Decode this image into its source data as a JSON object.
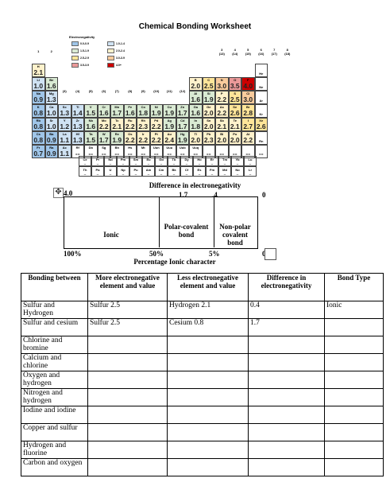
{
  "title": "Chemical Bonding Worksheet",
  "periodic_table": {
    "label": "Electronegativity",
    "legend": [
      {
        "range": "0.0-0.9",
        "color": "#9fc5e8"
      },
      {
        "range": "1.0-1.4",
        "color": "#cfe2f3"
      },
      {
        "range": "1.5-1.9",
        "color": "#d9ead3"
      },
      {
        "range": "2.0-2.4",
        "color": "#fff2cc"
      },
      {
        "range": "2.5-2.9",
        "color": "#ffe599"
      },
      {
        "range": "3.0-3.9",
        "color": "#f9cb9c"
      },
      {
        "range": "3.5-3.9",
        "color": "#ea9999"
      },
      {
        "range": "4.0+",
        "color": "#cc0000"
      }
    ],
    "group_numbers_left": [
      "1",
      "2"
    ],
    "group_numbers_right": [
      "3",
      "4",
      "5",
      "6",
      "7",
      "8"
    ],
    "group_numbers_right_sub": [
      "(13)",
      "(14)",
      "(15)",
      "(16)",
      "(17)",
      "(18)"
    ],
    "group_numbers_mid": [
      "(3)",
      "(4)",
      "(5)",
      "(6)",
      "(7)",
      "(8)",
      "(9)",
      "(10)",
      "(11)",
      "(12)"
    ],
    "rows": [
      {
        "left": [
          {
            "s": "H",
            "e": "2.1",
            "c": "#fff2cc"
          }
        ],
        "right": [
          {
            "s": "He",
            "e": "",
            "c": "#fff"
          }
        ]
      },
      {
        "left": [
          {
            "s": "Li",
            "e": "1.0",
            "c": "#cfe2f3"
          },
          {
            "s": "Be",
            "e": "1.6",
            "c": "#d9ead3"
          }
        ],
        "right": [
          {
            "s": "B",
            "e": "2.0",
            "c": "#fff2cc"
          },
          {
            "s": "C",
            "e": "2.5",
            "c": "#ffe599"
          },
          {
            "s": "N",
            "e": "3.0",
            "c": "#f9cb9c"
          },
          {
            "s": "O",
            "e": "3.5",
            "c": "#ea9999"
          },
          {
            "s": "F",
            "e": "4.0",
            "c": "#cc0000"
          },
          {
            "s": "Ne",
            "e": "",
            "c": "#fff"
          }
        ]
      },
      {
        "left": [
          {
            "s": "Na",
            "e": "0.9",
            "c": "#9fc5e8"
          },
          {
            "s": "Mg",
            "e": "1.3",
            "c": "#cfe2f3"
          }
        ],
        "right": [
          {
            "s": "Al",
            "e": "1.6",
            "c": "#d9ead3"
          },
          {
            "s": "Si",
            "e": "1.9",
            "c": "#d9ead3"
          },
          {
            "s": "P",
            "e": "2.2",
            "c": "#fff2cc"
          },
          {
            "s": "S",
            "e": "2.5",
            "c": "#ffe599"
          },
          {
            "s": "Cl",
            "e": "3.0",
            "c": "#f9cb9c"
          },
          {
            "s": "Ar",
            "e": "",
            "c": "#fff"
          }
        ]
      },
      {
        "left": [
          {
            "s": "K",
            "e": "0.8",
            "c": "#9fc5e8"
          },
          {
            "s": "Ca",
            "e": "1.0",
            "c": "#cfe2f3"
          }
        ],
        "mid": [
          {
            "s": "Sc",
            "e": "1.3",
            "c": "#cfe2f3"
          },
          {
            "s": "Ti",
            "e": "1.4",
            "c": "#cfe2f3"
          },
          {
            "s": "V",
            "e": "1.5",
            "c": "#d9ead3"
          },
          {
            "s": "Cr",
            "e": "1.6",
            "c": "#d9ead3"
          },
          {
            "s": "Mn",
            "e": "1.7",
            "c": "#d9ead3"
          },
          {
            "s": "Fe",
            "e": "1.6",
            "c": "#d9ead3"
          },
          {
            "s": "Co",
            "e": "1.8",
            "c": "#d9ead3"
          },
          {
            "s": "Ni",
            "e": "1.9",
            "c": "#d9ead3"
          },
          {
            "s": "Cu",
            "e": "1.9",
            "c": "#d9ead3"
          },
          {
            "s": "Zn",
            "e": "1.7",
            "c": "#d9ead3"
          }
        ],
        "right": [
          {
            "s": "Ga",
            "e": "1.6",
            "c": "#d9ead3"
          },
          {
            "s": "Ge",
            "e": "2.0",
            "c": "#fff2cc"
          },
          {
            "s": "As",
            "e": "2.2",
            "c": "#fff2cc"
          },
          {
            "s": "Se",
            "e": "2.6",
            "c": "#ffe599"
          },
          {
            "s": "Br",
            "e": "2.8",
            "c": "#ffe599"
          },
          {
            "s": "Kr",
            "e": "",
            "c": "#fff"
          }
        ]
      },
      {
        "left": [
          {
            "s": "Rb",
            "e": "0.8",
            "c": "#9fc5e8"
          },
          {
            "s": "Sr",
            "e": "1.0",
            "c": "#cfe2f3"
          }
        ],
        "mid": [
          {
            "s": "Y",
            "e": "1.2",
            "c": "#cfe2f3"
          },
          {
            "s": "Zr",
            "e": "1.3",
            "c": "#cfe2f3"
          },
          {
            "s": "Nb",
            "e": "1.6",
            "c": "#d9ead3"
          },
          {
            "s": "Mo",
            "e": "2.2",
            "c": "#fff2cc"
          },
          {
            "s": "Tc",
            "e": "2.1",
            "c": "#fff2cc"
          },
          {
            "s": "Ru",
            "e": "2.2",
            "c": "#fff2cc"
          },
          {
            "s": "Rh",
            "e": "2.3",
            "c": "#fff2cc"
          },
          {
            "s": "Pd",
            "e": "2.2",
            "c": "#fff2cc"
          },
          {
            "s": "Ag",
            "e": "1.9",
            "c": "#d9ead3"
          },
          {
            "s": "Cd",
            "e": "1.7",
            "c": "#d9ead3"
          }
        ],
        "right": [
          {
            "s": "In",
            "e": "1.8",
            "c": "#d9ead3"
          },
          {
            "s": "Sn",
            "e": "2.0",
            "c": "#fff2cc"
          },
          {
            "s": "Sb",
            "e": "2.1",
            "c": "#fff2cc"
          },
          {
            "s": "Te",
            "e": "2.1",
            "c": "#fff2cc"
          },
          {
            "s": "I",
            "e": "2.7",
            "c": "#ffe599"
          },
          {
            "s": "Xe",
            "e": "2.6",
            "c": "#ffe599"
          }
        ]
      },
      {
        "left": [
          {
            "s": "Cs",
            "e": "0.8",
            "c": "#9fc5e8"
          },
          {
            "s": "Ba",
            "e": "0.9",
            "c": "#9fc5e8"
          }
        ],
        "mid": [
          {
            "s": "La",
            "e": "1.1",
            "c": "#cfe2f3"
          },
          {
            "s": "Hf",
            "e": "1.3",
            "c": "#cfe2f3"
          },
          {
            "s": "Ta",
            "e": "1.5",
            "c": "#d9ead3"
          },
          {
            "s": "W",
            "e": "1.7",
            "c": "#d9ead3"
          },
          {
            "s": "Re",
            "e": "1.9",
            "c": "#d9ead3"
          },
          {
            "s": "Os",
            "e": "2.2",
            "c": "#fff2cc"
          },
          {
            "s": "Ir",
            "e": "2.2",
            "c": "#fff2cc"
          },
          {
            "s": "Pt",
            "e": "2.2",
            "c": "#fff2cc"
          },
          {
            "s": "Au",
            "e": "2.4",
            "c": "#fff2cc"
          },
          {
            "s": "Hg",
            "e": "1.9",
            "c": "#d9ead3"
          }
        ],
        "right": [
          {
            "s": "Tl",
            "e": "2.0",
            "c": "#fff2cc"
          },
          {
            "s": "Pb",
            "e": "2.3",
            "c": "#fff2cc"
          },
          {
            "s": "Bi",
            "e": "2.0",
            "c": "#fff2cc"
          },
          {
            "s": "Po",
            "e": "2.0",
            "c": "#fff2cc"
          },
          {
            "s": "At",
            "e": "2.2",
            "c": "#fff2cc"
          },
          {
            "s": "Rn",
            "e": "",
            "c": "#fff"
          }
        ]
      },
      {
        "left": [
          {
            "s": "Fr",
            "e": "0.7",
            "c": "#9fc5e8"
          },
          {
            "s": "Ra",
            "e": "0.9",
            "c": "#9fc5e8"
          }
        ],
        "mid": [
          {
            "s": "Ac",
            "e": "1.1",
            "c": "#cfe2f3"
          },
          {
            "s": "Rf",
            "e": "--",
            "c": "#fff"
          },
          {
            "s": "Db",
            "e": "--",
            "c": "#fff"
          },
          {
            "s": "Sg",
            "e": "--",
            "c": "#fff"
          },
          {
            "s": "Bh",
            "e": "--",
            "c": "#fff"
          },
          {
            "s": "Hs",
            "e": "--",
            "c": "#fff"
          },
          {
            "s": "Mt",
            "e": "--",
            "c": "#fff"
          },
          {
            "s": "Uun",
            "e": "--",
            "c": "#fff"
          },
          {
            "s": "Uuu",
            "e": "--",
            "c": "#fff"
          },
          {
            "s": "Uub",
            "e": "--",
            "c": "#fff"
          }
        ],
        "right": [
          {
            "s": "Uuq",
            "e": "--",
            "c": "#fff"
          },
          {
            "s": "",
            "e": "--",
            "c": "#fff"
          },
          {
            "s": "",
            "e": "--",
            "c": "#fff"
          },
          {
            "s": "",
            "e": "--",
            "c": "#fff"
          },
          {
            "s": "",
            "e": "--",
            "c": "#fff"
          },
          {
            "s": "",
            "e": "--",
            "c": "#fff"
          }
        ]
      }
    ],
    "lanthanides": [
      {
        "s": "Ce",
        "e": "--"
      },
      {
        "s": "Pr",
        "e": "--"
      },
      {
        "s": "Nd",
        "e": "--"
      },
      {
        "s": "Pm",
        "e": "--"
      },
      {
        "s": "Sm",
        "e": "--"
      },
      {
        "s": "Eu",
        "e": "--"
      },
      {
        "s": "Gd",
        "e": "--"
      },
      {
        "s": "Tb",
        "e": "--"
      },
      {
        "s": "Dy",
        "e": "--"
      },
      {
        "s": "Ho",
        "e": "--"
      },
      {
        "s": "Er",
        "e": "--"
      },
      {
        "s": "Tm",
        "e": "--"
      },
      {
        "s": "Yb",
        "e": "--"
      },
      {
        "s": "Lu",
        "e": "--"
      }
    ],
    "actinides": [
      {
        "s": "Th",
        "e": "--"
      },
      {
        "s": "Pa",
        "e": "--"
      },
      {
        "s": "U",
        "e": "--"
      },
      {
        "s": "Np",
        "e": "--"
      },
      {
        "s": "Pu",
        "e": "--"
      },
      {
        "s": "Am",
        "e": "--"
      },
      {
        "s": "Cm",
        "e": "--"
      },
      {
        "s": "Bk",
        "e": "--"
      },
      {
        "s": "Cf",
        "e": "--"
      },
      {
        "s": "Es",
        "e": "--"
      },
      {
        "s": "Fm",
        "e": "--"
      },
      {
        "s": "Md",
        "e": "--"
      },
      {
        "s": "No",
        "e": "--"
      },
      {
        "s": "Lr",
        "e": "--"
      }
    ]
  },
  "scale": {
    "title": "Difference in electronegativity",
    "top_4": "4.0",
    "top_17": "1.7",
    "top_04": ".4",
    "top_0": "0",
    "ionic": "Ionic",
    "polar_line1": "Polar-covalent",
    "polar_line2": "bond",
    "nonpolar_line1": "Non-polar",
    "nonpolar_line2": "covalent",
    "nonpolar_line3": "bond",
    "pct_100": "100%",
    "pct_50": "50%",
    "pct_5": "5%",
    "pct_0": "0",
    "bottom_title": "Percentage Ionic character"
  },
  "table": {
    "headers": [
      "Bonding between",
      "More electronegative element and value",
      "Less electronegative element and value",
      "Difference in electronegativity",
      "Bond Type"
    ],
    "rows": [
      [
        "Sulfur and Hydrogen",
        "Sulfur 2.5",
        "Hydrogen   2.1",
        "0.4",
        "Ionic"
      ],
      [
        "Sulfur and cesium",
        "Sulfur 2.5",
        "Cesium  0.8",
        "1.7",
        ""
      ],
      [
        "Chlorine and bromine",
        "",
        "",
        "",
        ""
      ],
      [
        "Calcium and chlorine",
        "",
        "",
        "",
        ""
      ],
      [
        "Oxygen and hydrogen",
        "",
        "",
        "",
        ""
      ],
      [
        "Nitrogen and hydrogen",
        "",
        "",
        "",
        ""
      ],
      [
        "Iodine and iodine",
        "",
        "",
        "",
        ""
      ],
      [
        "Copper and sulfur",
        "",
        "",
        "",
        ""
      ],
      [
        "Hydrogen and fluorine",
        "",
        "",
        "",
        ""
      ],
      [
        "Carbon and oxygen",
        "",
        "",
        "",
        ""
      ]
    ]
  }
}
